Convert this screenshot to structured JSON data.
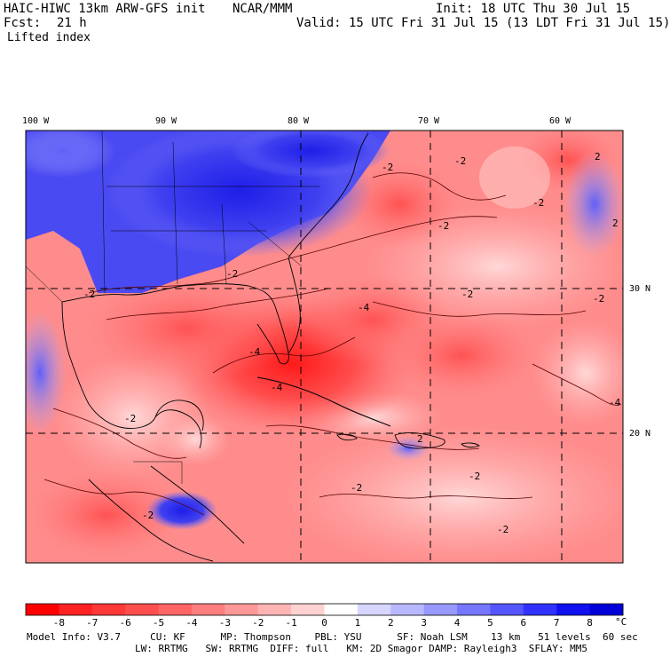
{
  "header": {
    "title": "HAIC-HIWC 13km ARW-GFS init",
    "org": "NCAR/MMM",
    "init": "Init: 18 UTC Thu 30 Jul 15",
    "fcst_label": "Fcst:",
    "fcst_value": "21 h",
    "valid": "Valid: 15 UTC Fri 31 Jul 15 (13 LDT Fri 31 Jul 15)",
    "field": "Lifted index"
  },
  "map": {
    "lon_labels": [
      "100 W",
      "90 W",
      "80 W",
      "70 W",
      "60 W"
    ],
    "lat_labels": [
      "30 N",
      "20 N"
    ],
    "contour_labels": [
      "-2",
      "-2",
      "-2",
      "-2",
      "-2",
      "-2",
      "-2",
      "-2",
      "-4",
      "-4",
      "-4",
      "-2",
      "-2",
      "-2",
      "2",
      "2",
      "2",
      "-2",
      "-2",
      "-4"
    ]
  },
  "colorbar": {
    "labels": [
      "-8",
      "-7",
      "-6",
      "-5",
      "-4",
      "-3",
      "-2",
      "-1",
      "0",
      "1",
      "2",
      "3",
      "4",
      "5",
      "6",
      "7",
      "8"
    ],
    "unit": "°C",
    "colors": [
      "#ff0000",
      "#ff2222",
      "#ff3838",
      "#ff4e4e",
      "#ff6565",
      "#ff7e7e",
      "#ff9898",
      "#ffb4b4",
      "#ffd2d2",
      "#ffffff",
      "#d6d6ff",
      "#b8b8ff",
      "#9898ff",
      "#7676ff",
      "#5555ff",
      "#3232ff",
      "#1010f0",
      "#0000d8"
    ]
  },
  "footer": {
    "line1": "Model Info: V3.7     CU: KF      MP: Thompson    PBL: YSU      SF: Noah LSM    13 km   51 levels  60 sec",
    "line2": "LW: RRTMG   SW: RRTMG  DIFF: full   KM: 2D Smagor DAMP: Rayleigh3  SFLAY: MM5"
  }
}
